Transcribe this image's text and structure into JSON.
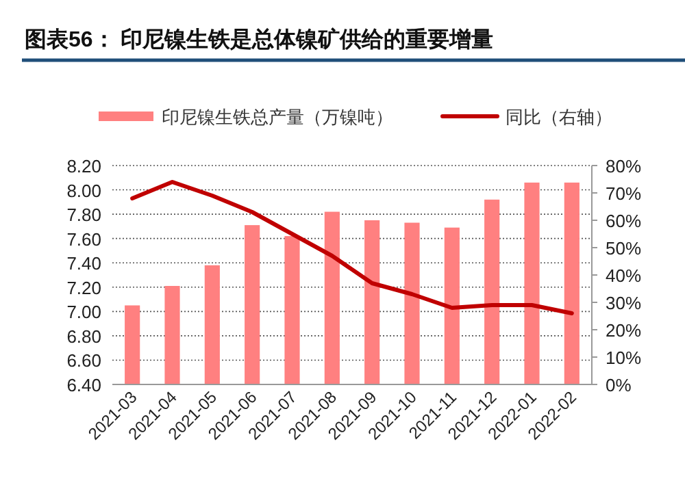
{
  "chart_data": {
    "type": "bar",
    "title": "图表56：  印尼镍生铁是总体镍矿供给的重要增量",
    "categories": [
      "2021-03",
      "2021-04",
      "2021-05",
      "2021-06",
      "2021-07",
      "2021-08",
      "2021-09",
      "2021-10",
      "2021-11",
      "2021-12",
      "2022-01",
      "2022-02"
    ],
    "series": [
      {
        "name": "印尼镍生铁总产量（万镍吨）",
        "color": "#ff8080",
        "values": [
          7.05,
          7.21,
          7.38,
          7.71,
          7.62,
          7.82,
          7.75,
          7.73,
          7.69,
          7.92,
          8.06,
          8.06
        ]
      },
      {
        "name": "同比（右轴）",
        "type": "line",
        "axis": "y2",
        "color": "#c00000",
        "values": [
          68,
          74,
          69,
          63,
          55,
          47,
          37,
          33,
          28,
          29,
          29,
          26
        ]
      }
    ],
    "ylim": [
      6.4,
      8.2
    ],
    "yticks": [
      {
        "value": 6.4,
        "label": "6.40"
      },
      {
        "value": 6.6,
        "label": "6.60"
      },
      {
        "value": 6.8,
        "label": "6.80"
      },
      {
        "value": 7.0,
        "label": "7.00"
      },
      {
        "value": 7.2,
        "label": "7.20"
      },
      {
        "value": 7.4,
        "label": "7.40"
      },
      {
        "value": 7.6,
        "label": "7.60"
      },
      {
        "value": 7.8,
        "label": "7.80"
      },
      {
        "value": 8.0,
        "label": "8.00"
      },
      {
        "value": 8.2,
        "label": "8.20"
      }
    ],
    "y2lim": [
      0,
      80
    ],
    "y2ticks": [
      {
        "value": 0,
        "label": "0%"
      },
      {
        "value": 10,
        "label": "10%"
      },
      {
        "value": 20,
        "label": "20%"
      },
      {
        "value": 30,
        "label": "30%"
      },
      {
        "value": 40,
        "label": "40%"
      },
      {
        "value": 50,
        "label": "50%"
      },
      {
        "value": 60,
        "label": "60%"
      },
      {
        "value": 70,
        "label": "70%"
      },
      {
        "value": 80,
        "label": "80%"
      }
    ],
    "grid": "y",
    "legend": "top"
  }
}
